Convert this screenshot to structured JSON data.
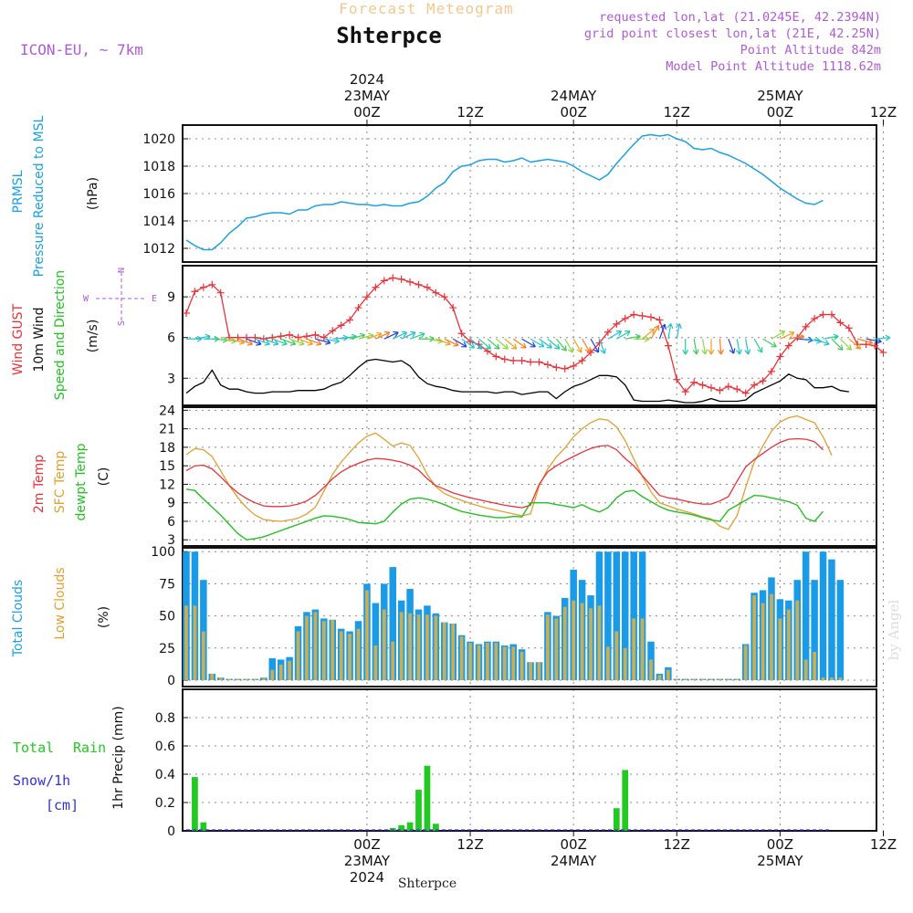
{
  "header": {
    "super_title": "Forecast Meteogram",
    "location": "Shterpce",
    "model": "ICON-EU, ~ 7km",
    "requested": "requested lon,lat (21.0245E, 42.2394N)",
    "grid_point": "grid point closest lon,lat (21E, 42.25N)",
    "point_alt": "Point Altitude 842m",
    "model_alt": "Model Point Altitude 1118.62m",
    "footer_location": "Shterpce",
    "watermark": "by Angel"
  },
  "time_axis": {
    "top": [
      {
        "t": 21,
        "lines": [
          "2024",
          "23MAY",
          "00Z"
        ]
      },
      {
        "t": 33,
        "lines": [
          "12Z"
        ]
      },
      {
        "t": 45,
        "lines": [
          "24MAY",
          "00Z"
        ]
      },
      {
        "t": 57,
        "lines": [
          "12Z"
        ]
      },
      {
        "t": 69,
        "lines": [
          "25MAY",
          "00Z"
        ]
      },
      {
        "t": 81,
        "lines": [
          "12Z"
        ]
      }
    ],
    "bottom": [
      {
        "t": 21,
        "lines": [
          "00Z",
          "23MAY",
          "2024"
        ]
      },
      {
        "t": 33,
        "lines": [
          "12Z"
        ]
      },
      {
        "t": 45,
        "lines": [
          "00Z",
          "24MAY"
        ]
      },
      {
        "t": 57,
        "lines": [
          "12Z"
        ]
      },
      {
        "t": 69,
        "lines": [
          "00Z",
          "25MAY"
        ]
      },
      {
        "t": 81,
        "lines": [
          "12Z"
        ]
      }
    ]
  },
  "panel_labels": {
    "pressure": {
      "name1": "PRMSL",
      "name2": "Pressure Reduced to MSL",
      "unit": "(hPa)"
    },
    "wind": {
      "gust": "Wind GUST",
      "wind10": "10m Wind",
      "dir": "Speed and Direction",
      "unit": "(m/s)",
      "compass_w": "W",
      "compass_e": "E",
      "compass_n": "N",
      "compass_s": "S"
    },
    "temp": {
      "t2m": "2m Temp",
      "sfc": "SFC Temp",
      "dew": "dewpt Temp",
      "unit": "(C)"
    },
    "clouds": {
      "total": "Total Clouds",
      "low": "Low Clouds",
      "unit": "(%)"
    },
    "precip": {
      "rain_a": "Total",
      "rain_b": "Rain",
      "snow": "Snow/1h",
      "snow_unit": "[cm]",
      "unit": "1hr Precip (mm)"
    }
  },
  "colors": {
    "pressure": "#1ba1e2",
    "gust": "#e8333b",
    "wind": "#000000",
    "t2m": "#e8333b",
    "sfc": "#e0a030",
    "dew": "#22c022",
    "total_cloud": "#1a9be8",
    "low_cloud": "#c8ae55",
    "rain": "#22c922",
    "snow": "#3030e0",
    "purple": "#b05ad8",
    "title_orange": "#f4c78c"
  },
  "chart_data": [
    {
      "type": "line",
      "title": "PRMSL Pressure Reduced to MSL",
      "ylabel": "(hPa)",
      "ylim": [
        1011,
        1021
      ],
      "yticks": [
        1012,
        1014,
        1016,
        1018,
        1020
      ],
      "t_start": 0,
      "t_step": 1,
      "series": [
        {
          "name": "PRMSL",
          "values": [
            1012.6,
            1012.2,
            1011.9,
            1011.9,
            1012.4,
            1013.1,
            1013.6,
            1014.2,
            1014.3,
            1014.5,
            1014.6,
            1014.6,
            1014.5,
            1014.8,
            1014.8,
            1015.1,
            1015.2,
            1015.2,
            1015.4,
            1015.3,
            1015.2,
            1015.2,
            1015.1,
            1015.2,
            1015.1,
            1015.1,
            1015.3,
            1015.4,
            1015.8,
            1016.4,
            1016.8,
            1017.6,
            1018.0,
            1018.1,
            1018.4,
            1018.5,
            1018.5,
            1018.3,
            1018.4,
            1018.6,
            1018.3,
            1018.4,
            1018.5,
            1018.4,
            1018.3,
            1018.0,
            1017.6,
            1017.3,
            1017.0,
            1017.4,
            1018.2,
            1018.9,
            1019.6,
            1020.2,
            1020.3,
            1020.2,
            1020.3,
            1020.0,
            1019.8,
            1019.3,
            1019.2,
            1019.3,
            1019.0,
            1018.8,
            1018.5,
            1018.2,
            1017.8,
            1017.4,
            1016.9,
            1016.4,
            1016.0,
            1015.6,
            1015.3,
            1015.2,
            1015.5
          ]
        }
      ]
    },
    {
      "type": "line",
      "title": "Wind GUST / 10m Wind Speed and Direction",
      "ylabel": "(m/s)",
      "ylim": [
        1,
        11.3
      ],
      "yticks": [
        3,
        6,
        9
      ],
      "t_start": 0,
      "t_step": 1,
      "series": [
        {
          "name": "Wind GUST",
          "values": [
            7.8,
            9.4,
            9.7,
            9.9,
            9.3,
            6.0,
            6.0,
            6.0,
            6.0,
            5.9,
            6.0,
            6.1,
            6.2,
            6.0,
            6.1,
            6.2,
            6.0,
            6.5,
            6.9,
            7.3,
            8.2,
            9.0,
            9.7,
            10.2,
            10.4,
            10.3,
            10.1,
            9.9,
            9.7,
            9.3,
            9.0,
            8.2,
            6.3,
            5.7,
            5.5,
            5.0,
            4.6,
            4.4,
            4.3,
            4.3,
            4.2,
            4.2,
            4.0,
            3.8,
            3.7,
            3.9,
            4.3,
            4.9,
            5.6,
            6.4,
            7.0,
            7.4,
            7.7,
            7.6,
            7.5,
            7.3,
            5.4,
            2.9,
            2.0,
            2.7,
            2.5,
            2.3,
            2.1,
            2.4,
            2.2,
            1.9,
            2.5,
            2.8,
            3.5,
            4.6,
            5.4,
            6.0,
            6.8,
            7.4,
            7.7,
            7.7,
            7.1,
            6.7,
            5.5,
            5.5,
            5.4,
            4.9
          ]
        },
        {
          "name": "10m Wind",
          "values": [
            1.9,
            2.4,
            2.7,
            3.6,
            2.5,
            2.2,
            2.2,
            2.0,
            1.9,
            1.9,
            2.0,
            2.0,
            2.0,
            2.1,
            2.1,
            2.1,
            2.2,
            2.5,
            2.7,
            3.2,
            3.8,
            4.3,
            4.4,
            4.3,
            4.2,
            4.3,
            3.9,
            3.1,
            2.6,
            2.4,
            2.3,
            2.1,
            2.0,
            2.0,
            2.0,
            2.0,
            1.9,
            2.0,
            2.0,
            1.8,
            1.9,
            2.0,
            2.0,
            1.5,
            2.0,
            2.4,
            2.6,
            2.9,
            3.2,
            3.2,
            3.1,
            2.5,
            1.4,
            1.3,
            1.3,
            1.3,
            1.4,
            1.3,
            1.2,
            1.2,
            1.3,
            1.5,
            1.3,
            1.3,
            1.3,
            1.4,
            1.9,
            2.2,
            2.5,
            2.8,
            3.3,
            3.0,
            2.9,
            2.3,
            2.3,
            2.4,
            2.1,
            2.0
          ]
        }
      ],
      "arrow_angles_deg": [
        0,
        10,
        0,
        -5,
        -10,
        -15,
        -20,
        -20,
        -20,
        -20,
        -20,
        -20,
        -20,
        -20,
        -20,
        -15,
        -10,
        5,
        10,
        15,
        15,
        20,
        25,
        25,
        25,
        25,
        20,
        0,
        -10,
        -20,
        -25,
        -30,
        -35,
        -40,
        -40,
        -40,
        -40,
        -40,
        -35,
        -30,
        -30,
        -35,
        -40,
        -50,
        -60,
        -60,
        -60,
        -60,
        -70,
        30,
        30,
        10,
        0,
        40,
        60,
        70,
        80,
        80,
        -90,
        -80,
        -80,
        -90,
        -85,
        -70,
        -80,
        -80,
        -60,
        -30,
        30,
        25,
        10,
        -5,
        -10,
        -20,
        10,
        -45,
        -45,
        -40,
        -15,
        -10,
        5
      ]
    },
    {
      "type": "line",
      "title": "2m Temp / SFC Temp / dewpt Temp",
      "ylabel": "(C)",
      "ylim": [
        2,
        24.5
      ],
      "yticks": [
        3,
        6,
        9,
        12,
        15,
        18,
        21,
        24
      ],
      "t_start": 0,
      "t_step": 1,
      "series": [
        {
          "name": "2m Temp",
          "values": [
            14.2,
            15.0,
            15.1,
            14.5,
            13.2,
            11.8,
            10.6,
            9.7,
            9.0,
            8.5,
            8.4,
            8.4,
            8.5,
            8.8,
            9.3,
            10.2,
            11.5,
            12.9,
            14.0,
            14.8,
            15.4,
            15.9,
            16.2,
            16.1,
            15.9,
            15.6,
            15.1,
            14.3,
            12.9,
            11.8,
            11.2,
            10.6,
            10.2,
            9.8,
            9.5,
            9.2,
            8.9,
            8.6,
            8.4,
            8.2,
            8.6,
            12.0,
            14.0,
            15.0,
            15.8,
            16.5,
            17.2,
            17.8,
            18.2,
            18.3,
            17.6,
            16.2,
            15.0,
            13.4,
            11.8,
            10.2,
            9.8,
            9.6,
            9.3,
            9.0,
            8.8,
            8.8,
            9.3,
            10.0,
            12.5,
            14.8,
            16.0,
            17.0,
            18.0,
            18.8,
            19.3,
            19.4,
            19.3,
            18.9,
            17.6
          ]
        },
        {
          "name": "SFC Temp",
          "values": [
            16.8,
            17.8,
            17.6,
            16.5,
            14.2,
            11.8,
            9.8,
            8.2,
            7.0,
            6.3,
            6.1,
            6.0,
            6.2,
            6.5,
            7.2,
            8.3,
            10.9,
            13.6,
            15.6,
            17.2,
            18.7,
            19.8,
            20.3,
            19.3,
            18.2,
            18.7,
            18.3,
            16.3,
            13.6,
            11.6,
            10.5,
            9.9,
            9.4,
            8.9,
            8.5,
            8.1,
            7.8,
            7.5,
            7.2,
            6.9,
            7.2,
            11.7,
            14.5,
            16.4,
            17.9,
            19.7,
            21.0,
            22.0,
            22.6,
            22.4,
            21.3,
            19.1,
            16.1,
            13.3,
            10.8,
            9.0,
            8.5,
            8.0,
            7.6,
            7.2,
            6.7,
            6.4,
            5.2,
            4.7,
            6.9,
            11.5,
            15.6,
            18.2,
            20.6,
            22.1,
            22.8,
            23.1,
            22.5,
            22.0,
            19.7,
            16.7
          ]
        },
        {
          "name": "dewpt Temp",
          "values": [
            11.2,
            11.0,
            9.6,
            8.3,
            7.0,
            5.5,
            4.0,
            3.0,
            3.2,
            3.5,
            4.0,
            4.5,
            5.0,
            5.5,
            6.0,
            6.5,
            6.9,
            6.8,
            6.6,
            6.3,
            5.8,
            5.7,
            5.6,
            6.0,
            7.5,
            8.8,
            9.6,
            9.8,
            9.6,
            9.2,
            8.7,
            8.1,
            7.6,
            7.3,
            7.0,
            6.8,
            6.6,
            6.6,
            6.8,
            6.7,
            9.0,
            9.0,
            9.0,
            8.7,
            8.5,
            8.2,
            8.7,
            8.0,
            7.5,
            8.2,
            9.8,
            10.8,
            11.0,
            10.0,
            9.2,
            8.4,
            7.8,
            7.5,
            7.3,
            7.0,
            6.6,
            6.2,
            6.0,
            7.8,
            8.6,
            9.4,
            10.2,
            10.1,
            9.8,
            9.5,
            9.2,
            8.6,
            6.5,
            6.0,
            7.6
          ]
        }
      ]
    },
    {
      "type": "bar",
      "title": "Total Clouds / Low Clouds",
      "ylabel": "(%)",
      "ylim": [
        -5,
        103
      ],
      "yticks": [
        0,
        25,
        50,
        75,
        100
      ],
      "t_start": 0,
      "t_step": 1,
      "series": [
        {
          "name": "Total Clouds",
          "values": [
            100,
            100,
            78,
            5,
            2,
            1,
            1,
            1,
            1,
            2,
            17,
            16,
            18,
            42,
            53,
            55,
            48,
            47,
            40,
            38,
            46,
            75,
            60,
            75,
            88,
            62,
            71,
            55,
            58,
            52,
            45,
            44,
            35,
            30,
            28,
            30,
            30,
            27,
            28,
            24,
            14,
            14,
            53,
            50,
            64,
            86,
            78,
            66,
            100,
            100,
            100,
            100,
            100,
            100,
            30,
            5,
            10,
            1,
            1,
            1,
            1,
            1,
            1,
            1,
            1,
            28,
            68,
            70,
            80,
            63,
            62,
            78,
            100,
            78,
            100,
            94,
            78
          ]
        },
        {
          "name": "Low Clouds",
          "values": [
            58,
            58,
            38,
            5,
            2,
            1,
            1,
            1,
            1,
            2,
            8,
            12,
            15,
            38,
            50,
            53,
            46,
            47,
            38,
            36,
            40,
            70,
            27,
            55,
            30,
            53,
            52,
            51,
            51,
            50,
            45,
            44,
            34,
            29,
            27,
            29,
            29,
            26,
            26,
            22,
            14,
            14,
            51,
            48,
            57,
            62,
            60,
            56,
            58,
            26,
            38,
            25,
            48,
            48,
            16,
            4,
            8,
            1,
            1,
            1,
            1,
            1,
            1,
            1,
            1,
            27,
            66,
            60,
            67,
            48,
            55,
            62,
            16,
            22,
            2,
            2,
            2
          ]
        }
      ]
    },
    {
      "type": "bar",
      "title": "1hr Precip",
      "ylabel": "1hr Precip (mm)",
      "ylim": [
        0,
        1.0
      ],
      "yticks": [
        0,
        0.2,
        0.4,
        0.6,
        0.8
      ],
      "t_start": 0,
      "t_step": 1,
      "series": [
        {
          "name": "Total Rain",
          "values": [
            0,
            0.38,
            0.06,
            0,
            0,
            0,
            0,
            0,
            0,
            0,
            0,
            0,
            0,
            0,
            0,
            0,
            0,
            0,
            0,
            0,
            0,
            0,
            0,
            0,
            0.02,
            0.04,
            0.06,
            0.29,
            0.46,
            0.05,
            0,
            0,
            0,
            0,
            0,
            0,
            0,
            0,
            0,
            0,
            0,
            0,
            0,
            0,
            0,
            0,
            0,
            0,
            0,
            0,
            0.16,
            0.43,
            0,
            0,
            0,
            0,
            0,
            0,
            0,
            0,
            0,
            0,
            0,
            0,
            0,
            0,
            0,
            0,
            0,
            0,
            0,
            0,
            0,
            0,
            0,
            0
          ]
        },
        {
          "name": "Snow/1h",
          "values": [
            0,
            0,
            0,
            0,
            0,
            0,
            0,
            0,
            0,
            0,
            0,
            0,
            0,
            0,
            0,
            0,
            0,
            0,
            0,
            0,
            0,
            0,
            0,
            0,
            0,
            0,
            0,
            0,
            0,
            0,
            0,
            0,
            0,
            0,
            0,
            0,
            0,
            0,
            0,
            0,
            0,
            0,
            0,
            0,
            0,
            0,
            0,
            0,
            0,
            0,
            0,
            0,
            0,
            0,
            0,
            0,
            0,
            0,
            0,
            0,
            0,
            0,
            0,
            0,
            0,
            0,
            0,
            0,
            0,
            0,
            0,
            0,
            0,
            0,
            0,
            0
          ]
        }
      ]
    }
  ]
}
